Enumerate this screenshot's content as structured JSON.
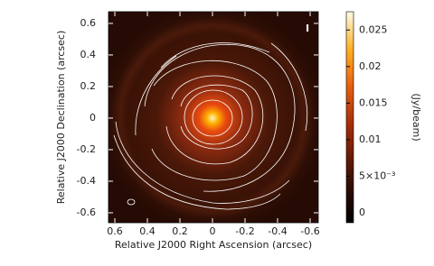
{
  "chart_data": {
    "type": "image",
    "xlabel": "Relative J2000 Right Ascension (arcsec)",
    "ylabel": "Relative J2000 Declination (arcsec)",
    "xlim": [
      0.639,
      -0.65
    ],
    "xticks": [
      0.6,
      0.4,
      0.2,
      0,
      -0.2,
      -0.4,
      -0.6
    ],
    "ylim": [
      -0.663,
      0.674
    ],
    "yticks": [
      -0.6,
      -0.4,
      -0.2,
      0,
      0.2,
      0.4,
      0.6
    ],
    "annotation": "I",
    "colorbar": {
      "label": "(Jy/beam)",
      "lim": [
        -0.00135,
        0.0275
      ],
      "ticks": [
        0,
        {
          "value": 0.005,
          "label": "5×10⁻³"
        },
        0.01,
        0.015,
        0.02,
        0.025
      ]
    }
  }
}
